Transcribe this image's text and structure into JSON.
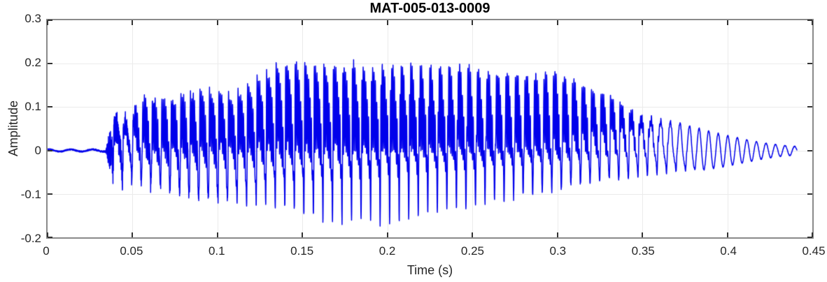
{
  "chart_data": {
    "type": "line",
    "title": "MAT-005-013-0009",
    "xlabel": "Time (s)",
    "ylabel": "Amplitude",
    "xlim": [
      0,
      0.45
    ],
    "ylim": [
      -0.2,
      0.3
    ],
    "xticks": [
      0,
      0.05,
      0.1,
      0.15,
      0.2,
      0.25,
      0.3,
      0.35,
      0.4,
      0.45
    ],
    "xtick_labels": [
      "0",
      "0.05",
      "0.1",
      "0.15",
      "0.2",
      "0.25",
      "0.3",
      "0.35",
      "0.4",
      "0.45"
    ],
    "yticks": [
      -0.2,
      -0.1,
      0,
      0.1,
      0.2,
      0.3
    ],
    "ytick_labels": [
      "-0.2",
      "-0.1",
      "0",
      "0.1",
      "0.2",
      "0.3"
    ],
    "grid": true,
    "legend": null,
    "colors": {
      "line": "#0000EB",
      "axis_box": "#8A8A8A",
      "grid": "#EBEBEB",
      "tick": "#333333",
      "text": "#262626",
      "title_text": "#000000",
      "background": "#FFFFFF"
    },
    "series": [
      {
        "name": "waveform",
        "kind": "speech-like audio waveform",
        "t_start_s": 0.0,
        "t_end_s": 0.441,
        "f0_hz": 178,
        "harmonic_amps": [
          1.0,
          0.62,
          0.48,
          0.35,
          0.28,
          0.2,
          0.14,
          0.1
        ],
        "harmonic_phases": [
          0,
          0.9,
          1.9,
          2.8,
          3.7,
          4.6,
          5.5,
          6.4
        ],
        "hf_formant_hz": 1250,
        "hf_mix": [
          [
            0.045,
            0
          ],
          [
            0.06,
            0.7
          ],
          [
            0.3,
            0.65
          ],
          [
            0.37,
            0
          ]
        ],
        "voiced_onset_s": 0.038,
        "voiced_full_s": 0.05,
        "harmonic_decay_start_s": 0.335,
        "harmonic_decay_end_s": 0.385,
        "pre_wiggle_hz": 78,
        "pre_wiggle_amp": 0.0025,
        "noise_seed": 1234,
        "sample_dt_s": 8e-05,
        "envelope_t_pos_neg": [
          [
            0.0,
            0.004,
            -0.004
          ],
          [
            0.033,
            0.005,
            -0.005
          ],
          [
            0.036,
            0.01,
            -0.01
          ],
          [
            0.039,
            0.06,
            -0.055
          ],
          [
            0.045,
            0.075,
            -0.07
          ],
          [
            0.052,
            0.11,
            -0.09
          ],
          [
            0.058,
            0.145,
            -0.11
          ],
          [
            0.065,
            0.12,
            -0.13
          ],
          [
            0.075,
            0.13,
            -0.15
          ],
          [
            0.09,
            0.145,
            -0.17
          ],
          [
            0.105,
            0.135,
            -0.17
          ],
          [
            0.115,
            0.14,
            -0.16
          ],
          [
            0.125,
            0.175,
            -0.155
          ],
          [
            0.135,
            0.205,
            -0.15
          ],
          [
            0.15,
            0.21,
            -0.16
          ],
          [
            0.16,
            0.2,
            -0.17
          ],
          [
            0.17,
            0.205,
            -0.175
          ],
          [
            0.18,
            0.21,
            -0.16
          ],
          [
            0.19,
            0.2,
            -0.165
          ],
          [
            0.2,
            0.205,
            -0.17
          ],
          [
            0.21,
            0.21,
            -0.155
          ],
          [
            0.22,
            0.205,
            -0.15
          ],
          [
            0.23,
            0.2,
            -0.14
          ],
          [
            0.24,
            0.21,
            -0.135
          ],
          [
            0.25,
            0.2,
            -0.14
          ],
          [
            0.26,
            0.19,
            -0.13
          ],
          [
            0.27,
            0.19,
            -0.125
          ],
          [
            0.28,
            0.19,
            -0.12
          ],
          [
            0.29,
            0.185,
            -0.12
          ],
          [
            0.3,
            0.198,
            -0.115
          ],
          [
            0.31,
            0.175,
            -0.105
          ],
          [
            0.32,
            0.155,
            -0.095
          ],
          [
            0.33,
            0.14,
            -0.085
          ],
          [
            0.34,
            0.115,
            -0.08
          ],
          [
            0.35,
            0.095,
            -0.07
          ],
          [
            0.36,
            0.08,
            -0.06
          ],
          [
            0.37,
            0.068,
            -0.052
          ],
          [
            0.38,
            0.055,
            -0.048
          ],
          [
            0.39,
            0.044,
            -0.042
          ],
          [
            0.4,
            0.034,
            -0.036
          ],
          [
            0.41,
            0.026,
            -0.028
          ],
          [
            0.42,
            0.018,
            -0.02
          ],
          [
            0.43,
            0.013,
            -0.014
          ],
          [
            0.441,
            0.009,
            -0.01
          ]
        ],
        "noise_amp_t": [
          [
            0.0,
            0.0015
          ],
          [
            0.034,
            0.002
          ],
          [
            0.0365,
            0.045
          ],
          [
            0.043,
            0.035
          ],
          [
            0.05,
            0.015
          ],
          [
            0.12,
            0.01
          ],
          [
            0.3,
            0.008
          ],
          [
            0.355,
            0.004
          ],
          [
            0.38,
            0.0015
          ],
          [
            0.441,
            0.0008
          ]
        ]
      }
    ]
  }
}
